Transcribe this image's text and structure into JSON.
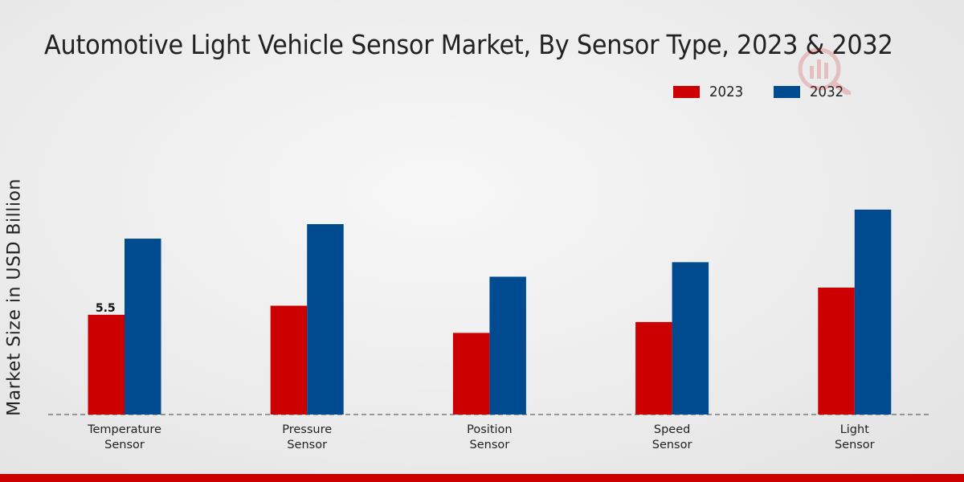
{
  "chart_data": {
    "type": "bar",
    "title": "Automotive Light Vehicle Sensor Market, By Sensor Type, 2023 & 2032",
    "ylabel": "Market Size in USD Billion",
    "xlabel": "",
    "categories": [
      "Temperature Sensor",
      "Pressure Sensor",
      "Position Sensor",
      "Speed Sensor",
      "Light Sensor"
    ],
    "category_lines": [
      [
        "Temperature",
        "Sensor"
      ],
      [
        "Pressure",
        "Sensor"
      ],
      [
        "Position",
        "Sensor"
      ],
      [
        "Speed",
        "Sensor"
      ],
      [
        "Light",
        "Sensor"
      ]
    ],
    "series": [
      {
        "name": "2023",
        "color": "#cc0000",
        "values": [
          5.5,
          6.0,
          4.5,
          5.1,
          7.0
        ]
      },
      {
        "name": "2032",
        "color": "#004a8f",
        "values": [
          9.7,
          10.5,
          7.6,
          8.4,
          11.3
        ]
      }
    ],
    "data_labels": [
      {
        "series": 0,
        "index": 0,
        "text": "5.5"
      }
    ],
    "ylim": [
      0,
      14
    ],
    "grid": false,
    "legend_position": "top-right",
    "baseline_style": "dashed"
  }
}
